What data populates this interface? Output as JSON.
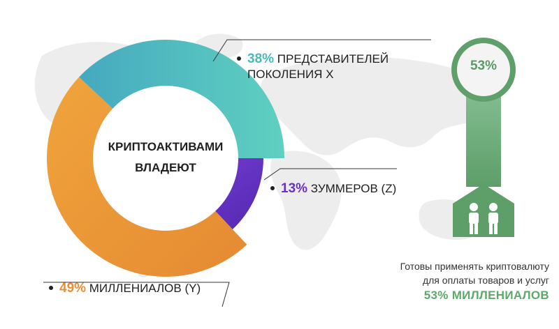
{
  "center_label_line1": "КРИПТОАКТИВАМИ",
  "center_label_line2": "ВЛАДЕЮТ",
  "badge_value": "53%",
  "note_line1": "Готовы применять криптовалюту",
  "note_line2": "для оплаты товаров и услуг",
  "note_highlight": "53% МИЛЛЕНИАЛОВ",
  "colors": {
    "gen_x": "#4fc2c1",
    "zoomers": "#6a31c8",
    "millennials": "#ef9c3a",
    "badge": "#6aa876",
    "map": "#ececec"
  },
  "icons": [
    "people-icon",
    "world-map-background"
  ],
  "chart_data": {
    "type": "pie",
    "donut": true,
    "title": "",
    "series": [
      {
        "name": "ПРЕДСТАВИТЕЛЕЙ ПОКОЛЕНИЯ X",
        "label_line1": "ПРЕДСТАВИТЕЛЕЙ",
        "label_line2": "ПОКОЛЕНИЯ X",
        "value": 38,
        "pct_label": "38%",
        "color": "#4fc2c1"
      },
      {
        "name": "ЗУММЕРОВ (Z)",
        "value": 13,
        "pct_label": "13%",
        "color": "#6a31c8"
      },
      {
        "name": "МИЛЛЕНИАЛОВ (Y)",
        "value": 49,
        "pct_label": "49%",
        "color": "#ef9c3a"
      }
    ]
  }
}
